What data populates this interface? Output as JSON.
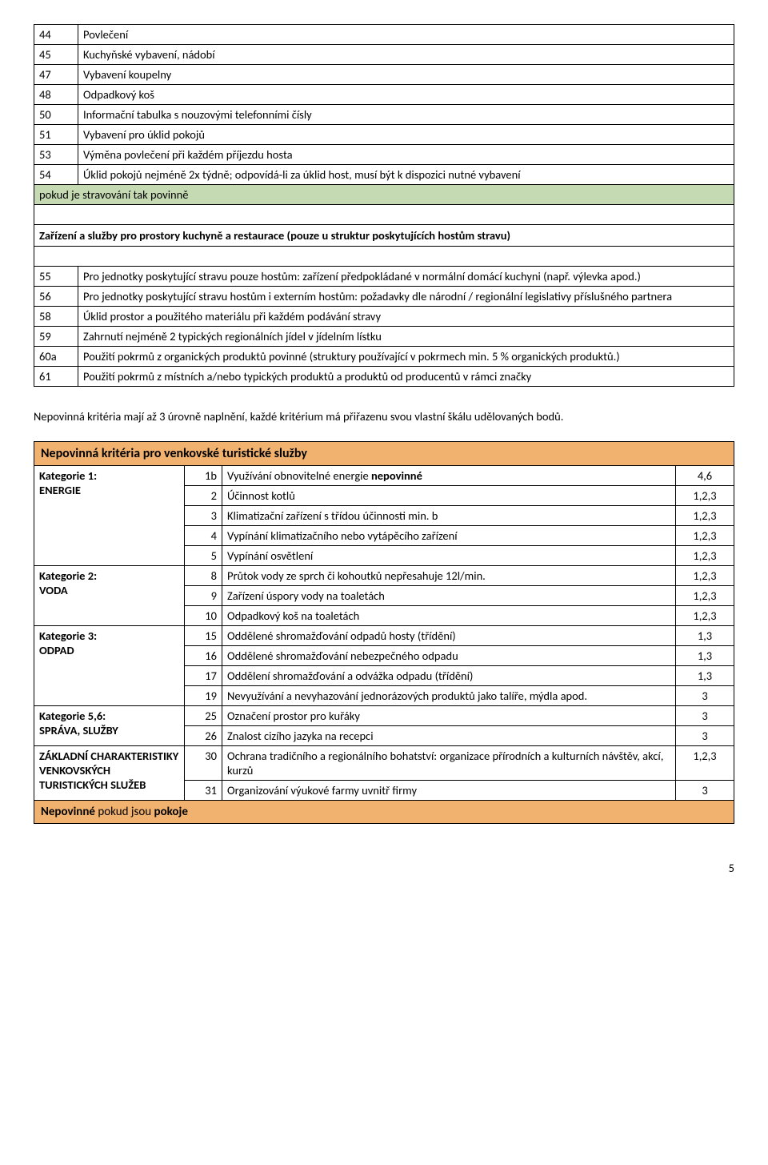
{
  "table1": {
    "rows": [
      {
        "num": "44",
        "text": "Povlečení"
      },
      {
        "num": "45",
        "text": "Kuchyňské vybavení, nádobí"
      },
      {
        "num": "47",
        "text": "Vybavení koupelny"
      },
      {
        "num": "48",
        "text": "Odpadkový koš"
      },
      {
        "num": "50",
        "text": "Informační tabulka s nouzovými telefonními čísly"
      },
      {
        "num": "51",
        "text": "Vybavení pro úklid pokojů"
      },
      {
        "num": "53",
        "text": "Výměna povlečení při každém příjezdu hosta"
      },
      {
        "num": "54",
        "text": "Úklid pokojů nejméně 2x týdně; odpovídá-li za úklid host, musí být k dispozici nutné vybavení"
      }
    ],
    "green_label": "pokud je stravování tak povinně",
    "section_heading": "Zařízení a služby pro prostory kuchyně a restaurace (pouze u struktur poskytujících hostům stravu)",
    "rows2": [
      {
        "num": "55",
        "text": "Pro jednotky poskytující stravu pouze hostům: zařízení předpokládané v normální domácí kuchyni (např. výlevka apod.)"
      },
      {
        "num": "56",
        "text": "Pro jednotky poskytující stravu hostům i externím hostům: požadavky dle národní / regionální legislativy příslušného partnera"
      },
      {
        "num": "58",
        "text": "Úklid prostor a použitého materiálu při každém podávání stravy"
      },
      {
        "num": "59",
        "text": "Zahrnutí nejméně 2 typických regionálních jídel v jídelním lístku"
      },
      {
        "num": "60a",
        "text": "Použití pokrmů z organických produktů povinné (struktury používající v pokrmech min.  5 % organických produktů.)"
      },
      {
        "num": "61",
        "text": "Použití pokrmů z místních a/nebo typických produktů a produktů od producentů v rámci značky"
      }
    ]
  },
  "paragraph": "Nepovinná kritéria mají až 3 úrovně naplnění, každé kritérium má přiřazenu svou vlastní škálu udělovaných bodů.",
  "table2": {
    "title": "Nepovinná kritéria pro venkovské turistické služby",
    "groups": [
      {
        "cat": "Kategorie 1:\nENERGIE",
        "rows": [
          {
            "idx": "1b",
            "text_html": "Využívání obnovitelné energie <b>nepovinné</b>",
            "pts": "4,6"
          },
          {
            "idx": "2",
            "text": "Účinnost kotlů",
            "pts": "1,2,3"
          },
          {
            "idx": "3",
            "text": "Klimatizační zařízení s třídou účinnosti min. b",
            "pts": "1,2,3"
          },
          {
            "idx": "4",
            "text": "Vypínání klimatizačního nebo vytápěcího zařízení",
            "pts": "1,2,3"
          },
          {
            "idx": "5",
            "text": "Vypínání osvětlení",
            "pts": "1,2,3"
          }
        ]
      },
      {
        "cat": "Kategorie 2:\nVODA",
        "rows": [
          {
            "idx": "8",
            "text": "Průtok vody ze sprch či kohoutků nepřesahuje 12l/min.",
            "pts": "1,2,3"
          },
          {
            "idx": "9",
            "text": "Zařízení úspory vody na toaletách",
            "pts": "1,2,3"
          },
          {
            "idx": "10",
            "text": "Odpadkový koš na toaletách",
            "pts": "1,2,3"
          }
        ]
      },
      {
        "cat": "Kategorie 3:\nODPAD",
        "rows": [
          {
            "idx": "15",
            "text": "Oddělené shromažďování odpadů hosty (třídění)",
            "pts": "1,3"
          },
          {
            "idx": "16",
            "text": "Oddělené shromažďování nebezpečného odpadu",
            "pts": "1,3"
          },
          {
            "idx": "17",
            "text": "Oddělení shromažďování a odvážka odpadu (třídění)",
            "pts": "1,3"
          },
          {
            "idx": "19",
            "text": "Nevyužívání a nevyhazování jednorázových produktů jako talíře, mýdla apod.",
            "pts": "3"
          }
        ]
      },
      {
        "cat": "Kategorie 5,6:\nSPRÁVA, SLUŽBY",
        "rows": [
          {
            "idx": "25",
            "text": "Označení prostor pro kuřáky",
            "pts": "3"
          },
          {
            "idx": "26",
            "text": "Znalost cizího jazyka na recepci",
            "pts": "3"
          }
        ]
      },
      {
        "cat": "ZÁKLADNÍ CHARAKTERISTIKY VENKOVSKÝCH TURISTICKÝCH SLUŽEB",
        "rows": [
          {
            "idx": "30",
            "text": "Ochrana tradičního a regionálního bohatství: organizace přírodních a kulturních návštěv, akcí, kurzů",
            "pts": "1,2,3"
          },
          {
            "idx": "31",
            "text": "Organizování výukové farmy uvnitř firmy",
            "pts": "3"
          }
        ]
      }
    ],
    "footer_html": "<b>Nepovinné</b> pokud jsou <b>pokoje</b>"
  },
  "page_number": "5"
}
